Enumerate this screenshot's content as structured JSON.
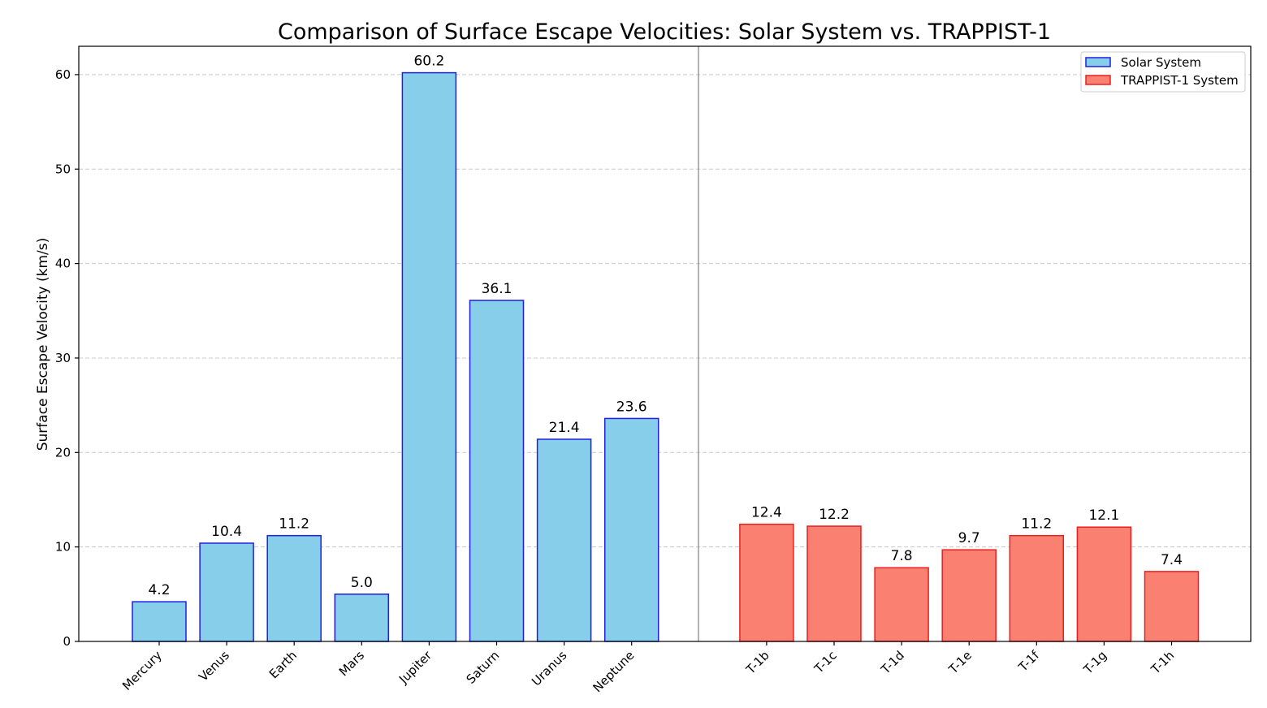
{
  "chart_data": {
    "type": "bar",
    "title": "Comparison of Surface Escape Velocities: Solar System vs. TRAPPIST-1",
    "xlabel": "",
    "ylabel": "Surface Escape Velocity (km/s)",
    "ylim": [
      0,
      63
    ],
    "yticks": [
      0,
      10,
      20,
      30,
      40,
      50,
      60
    ],
    "grid": "y-dashed",
    "legend_position": "top-right",
    "series": [
      {
        "name": "Solar System",
        "color": "#87CEEB",
        "edge_color": "#1f1fe0",
        "categories": [
          "Mercury",
          "Venus",
          "Earth",
          "Mars",
          "Jupiter",
          "Saturn",
          "Uranus",
          "Neptune"
        ],
        "values": [
          4.2,
          10.4,
          11.2,
          5.0,
          60.2,
          36.1,
          21.4,
          23.6
        ],
        "value_labels": [
          "4.2",
          "10.4",
          "11.2",
          "5.0",
          "60.2",
          "36.1",
          "21.4",
          "23.6"
        ]
      },
      {
        "name": "TRAPPIST-1 System",
        "color": "#FA8072",
        "edge_color": "#e82020",
        "categories": [
          "T-1b",
          "T-1c",
          "T-1d",
          "T-1e",
          "T-1f",
          "T-1g",
          "T-1h"
        ],
        "values": [
          12.4,
          12.2,
          7.8,
          9.7,
          11.2,
          12.1,
          7.4
        ],
        "value_labels": [
          "12.4",
          "12.2",
          "7.8",
          "9.7",
          "11.2",
          "12.1",
          "7.4"
        ]
      }
    ]
  }
}
